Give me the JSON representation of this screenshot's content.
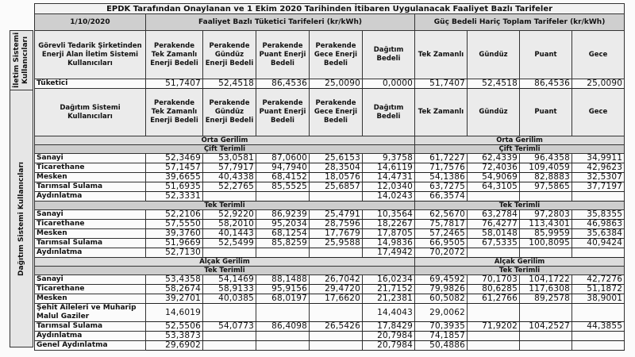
{
  "title": "EPDK Tarafından Onaylanan ve 1 Ekim 2020 Tarihinden İtibaren Uygulanacak Faaliyet Bazlı Tarifeler",
  "date": "1/10/2020",
  "group_left": "Faaliyet Bazlı Tüketici Tarifeleri (kr/kWh)",
  "group_right": "Güç Bedeli Hariç Toplam Tarifeler (kr/kWh)",
  "side_labels": {
    "iletim": "İletim Sistemi Kullanıcıları",
    "dagitim": "Dağıtım Sistemi Kullanıcıları"
  },
  "column_headers": [
    "Perakende Tek Zamanlı Enerji Bedeli",
    "Perakende Gündüz Enerji Bedeli",
    "Perakende Puant Enerji Bedeli",
    "Perakende Gece Enerji Bedeli",
    "Dağıtım Bedeli",
    "Tek Zamanlı",
    "Gündüz",
    "Puant",
    "Gece"
  ],
  "iletim": {
    "header": "Görevli Tedarik Şirketinden Enerji Alan İletim Sistemi Kullanıcıları",
    "row": {
      "label": "Tüketici",
      "values": [
        "51,7407",
        "52,4518",
        "86,4536",
        "25,0090",
        "0,0000",
        "51,7407",
        "52,4518",
        "86,4536",
        "25,0090"
      ]
    }
  },
  "dagitim_header": "Dağıtım Sistemi Kullanıcıları",
  "sections": [
    {
      "title": "Orta Gerilim",
      "subtitle": "Çift Terimli",
      "rows": [
        {
          "label": "Sanayi",
          "values": [
            "52,3469",
            "53,0581",
            "87,0600",
            "25,6153",
            "9,3758",
            "61,7227",
            "62,4339",
            "96,4358",
            "34,9911"
          ]
        },
        {
          "label": "Ticarethane",
          "values": [
            "57,1457",
            "57,7917",
            "94,7940",
            "28,3504",
            "14,6119",
            "71,7576",
            "72,4036",
            "109,4059",
            "42,9623"
          ]
        },
        {
          "label": "Mesken",
          "values": [
            "39,6655",
            "40,4338",
            "68,4152",
            "18,0576",
            "14,4731",
            "54,1386",
            "54,9069",
            "82,8883",
            "32,5307"
          ]
        },
        {
          "label": "Tarımsal Sulama",
          "values": [
            "51,6935",
            "52,2765",
            "85,5525",
            "25,6857",
            "12,0340",
            "63,7275",
            "64,3105",
            "97,5865",
            "37,7197"
          ]
        },
        {
          "label": "Aydınlatma",
          "values": [
            "52,3331",
            "",
            "",
            "",
            "14,0243",
            "66,3574",
            "",
            "",
            ""
          ]
        }
      ]
    },
    {
      "title": "",
      "subtitle": "Tek Terimli",
      "rows": [
        {
          "label": "Sanayi",
          "values": [
            "52,2106",
            "52,9220",
            "86,9239",
            "25,4791",
            "10,3564",
            "62,5670",
            "63,2784",
            "97,2803",
            "35,8355"
          ]
        },
        {
          "label": "Ticarethane",
          "values": [
            "57,5550",
            "58,2010",
            "95,2034",
            "28,7596",
            "18,2267",
            "75,7817",
            "76,4277",
            "113,4301",
            "46,9863"
          ]
        },
        {
          "label": "Mesken",
          "values": [
            "39,3760",
            "40,1443",
            "68,1254",
            "17,7679",
            "17,8705",
            "57,2465",
            "58,0148",
            "85,9959",
            "35,6384"
          ]
        },
        {
          "label": "Tarımsal Sulama",
          "values": [
            "51,9669",
            "52,5499",
            "85,8259",
            "25,9588",
            "14,9836",
            "66,9505",
            "67,5335",
            "100,8095",
            "40,9424"
          ]
        },
        {
          "label": "Aydınlatma",
          "values": [
            "52,7130",
            "",
            "",
            "",
            "17,4942",
            "70,2072",
            "",
            "",
            ""
          ]
        }
      ]
    },
    {
      "title": "Alçak Gerilim",
      "subtitle": "Tek Terimli",
      "rows": [
        {
          "label": "Sanayi",
          "values": [
            "53,4358",
            "54,1469",
            "88,1488",
            "26,7042",
            "16,0234",
            "69,4592",
            "70,1703",
            "104,1722",
            "42,7276"
          ]
        },
        {
          "label": "Ticarethane",
          "values": [
            "58,2674",
            "58,9133",
            "95,9156",
            "29,4720",
            "21,7152",
            "79,9826",
            "80,6285",
            "117,6308",
            "51,1872"
          ]
        },
        {
          "label": "Mesken",
          "values": [
            "39,2701",
            "40,0385",
            "68,0197",
            "17,6620",
            "21,2381",
            "60,5082",
            "61,2766",
            "89,2578",
            "38,9001"
          ]
        },
        {
          "label": "Şehit Aileleri ve Muharip Malul Gaziler",
          "values": [
            "14,6019",
            "",
            "",
            "",
            "14,4043",
            "29,0062",
            "",
            "",
            ""
          ],
          "tall": true
        },
        {
          "label": "Tarımsal Sulama",
          "values": [
            "52,5506",
            "54,0773",
            "86,4098",
            "26,5426",
            "17,8429",
            "70,3935",
            "71,9202",
            "104,2527",
            "44,3855"
          ]
        },
        {
          "label": "Aydınlatma",
          "values": [
            "53,3873",
            "",
            "",
            "",
            "20,7984",
            "74,1857",
            "",
            "",
            ""
          ]
        },
        {
          "label": "Genel Aydınlatma",
          "values": [
            "29,6902",
            "",
            "",
            "",
            "20,7984",
            "50,4886",
            "",
            "",
            ""
          ]
        }
      ]
    }
  ]
}
